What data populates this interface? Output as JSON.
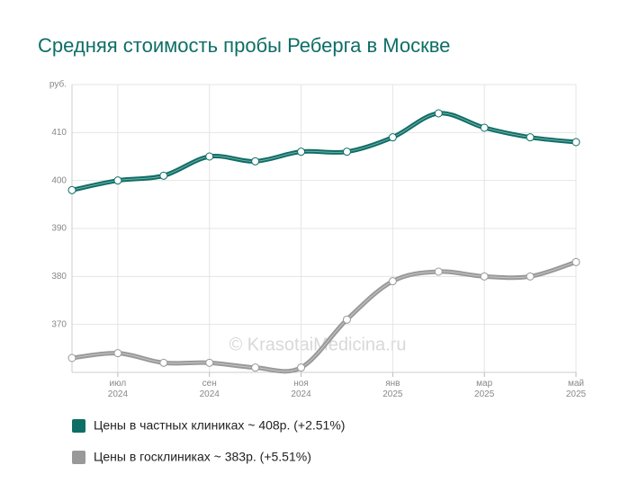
{
  "chart_data": {
    "type": "line",
    "title": "Средняя стоимость пробы Реберга в Москве",
    "watermark": "© KrasotaiMedicina.ru",
    "categories": [
      null,
      "июл 2024",
      null,
      "сен 2024",
      null,
      "ноя 2024",
      null,
      "янв 2025",
      null,
      "мар 2025",
      null,
      "май 2025"
    ],
    "series": [
      {
        "name": "Цены в частных клиниках ~ 408р. (+2.51%)",
        "color": "#0e6e66",
        "values": [
          398,
          400,
          401,
          405,
          404,
          406,
          406,
          409,
          414,
          411,
          409,
          408
        ]
      },
      {
        "name": "Цены в госклиниках ~ 383р. (+5.51%)",
        "color": "#999999",
        "values": [
          363,
          364,
          362,
          362,
          361,
          361,
          371,
          379,
          381,
          380,
          380,
          383
        ]
      }
    ],
    "ylim": [
      360,
      420
    ],
    "yticks": [
      370,
      380,
      390,
      400,
      410,
      {
        "value": 420,
        "label": "руб."
      }
    ],
    "grid": true
  }
}
